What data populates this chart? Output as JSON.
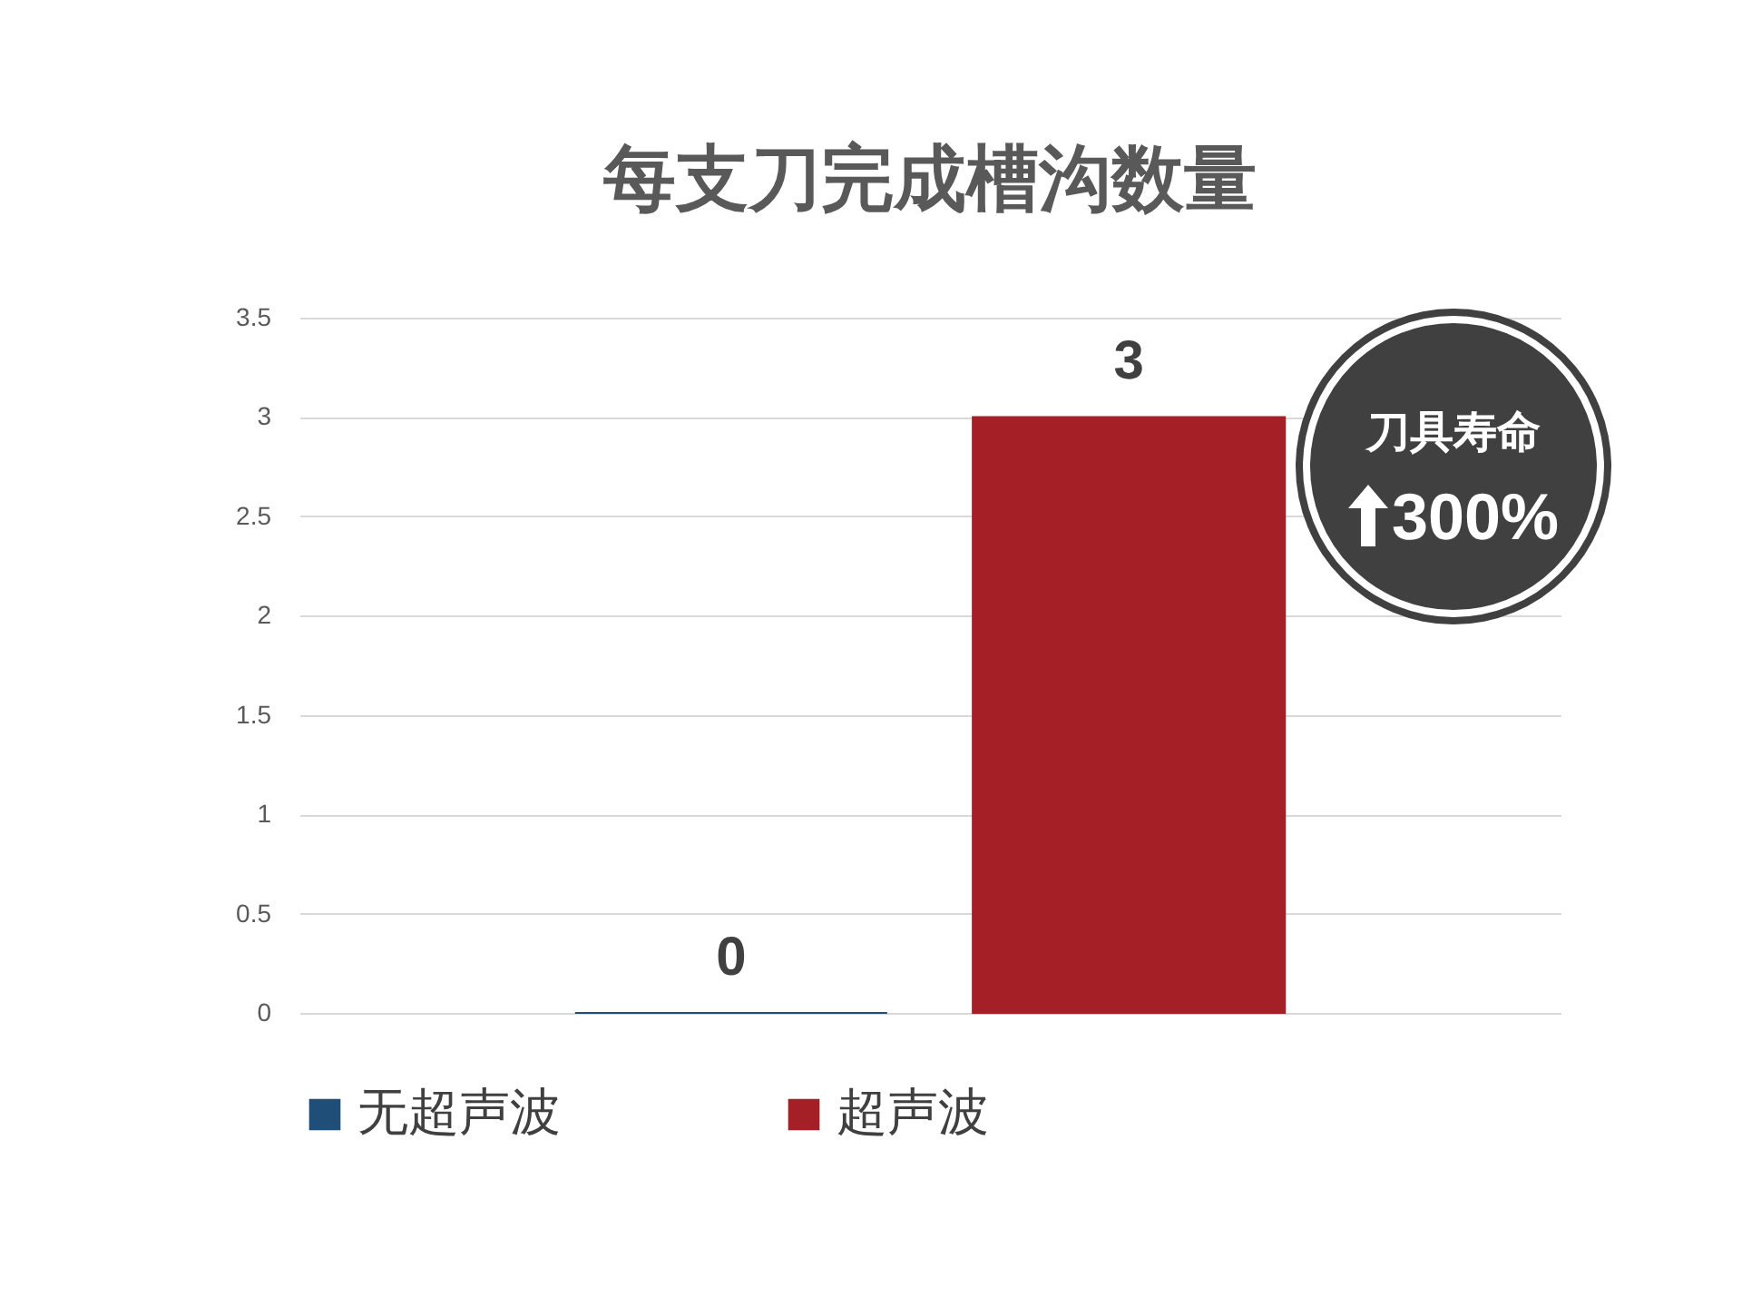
{
  "chart_data": {
    "type": "bar",
    "title": "每支刀完成槽沟数量",
    "categories": [
      null
    ],
    "series": [
      {
        "name": "无超声波",
        "color": "#1f4e79",
        "values": [
          0
        ]
      },
      {
        "name": "超声波",
        "color": "#a52026",
        "values": [
          3
        ]
      }
    ],
    "ylim": [
      0,
      3.5
    ],
    "yticks": [
      0,
      0.5,
      1,
      1.5,
      2,
      2.5,
      3,
      3.5
    ],
    "grid": "y",
    "legend": "bottom",
    "data_labels": true,
    "annotations": [
      "刀具寿命",
      "300%"
    ]
  }
}
